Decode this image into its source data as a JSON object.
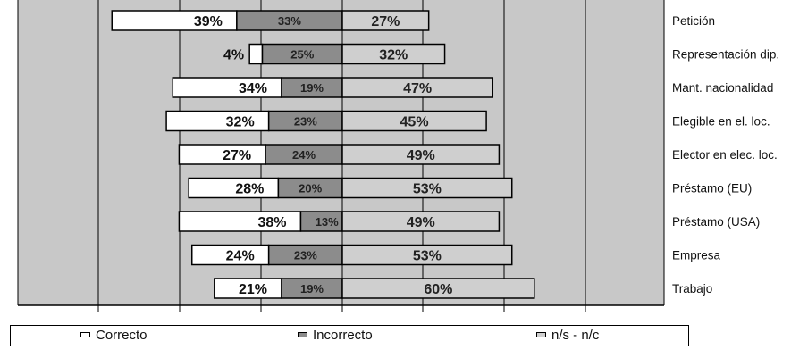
{
  "chart_data": {
    "type": "bar",
    "stacked": true,
    "orientation": "horizontal",
    "categories": [
      "Petición",
      "Representación dip.",
      "Mant. nacionalidad",
      "Elegible en el. loc.",
      "Elector en elec. loc.",
      "Préstamo (EU)",
      "Préstamo (USA)",
      "Empresa",
      "Trabajo"
    ],
    "series": [
      {
        "name": "Correcto",
        "values": [
          39,
          4,
          34,
          32,
          27,
          28,
          38,
          24,
          21
        ],
        "labels": [
          "39%",
          "4%",
          "34%",
          "32%",
          "27%",
          "28%",
          "38%",
          "24%",
          "21%"
        ]
      },
      {
        "name": "Incorrecto",
        "values": [
          33,
          25,
          19,
          23,
          24,
          20,
          13,
          23,
          19
        ],
        "labels": [
          "33%",
          "25%",
          "19%",
          "23%",
          "24%",
          "20%",
          "13%",
          "23%",
          "19%"
        ]
      },
      {
        "name": "n/s - n/c",
        "values": [
          27,
          32,
          47,
          45,
          49,
          53,
          49,
          53,
          60
        ],
        "labels": [
          "27%",
          "32%",
          "47%",
          "45%",
          "49%",
          "53%",
          "49%",
          "53%",
          "60%"
        ]
      }
    ],
    "colors": {
      "correcto": "#ffffff",
      "incorrecto": "#8c8c8c",
      "nsnc": "#cfcfcf",
      "plot_bg": "#c8c8c8"
    },
    "grid": true,
    "legend_position": "bottom"
  },
  "legend": [
    {
      "label": "Correcto"
    },
    {
      "label": "Incorrecto"
    },
    {
      "label": "n/s - n/c"
    }
  ]
}
